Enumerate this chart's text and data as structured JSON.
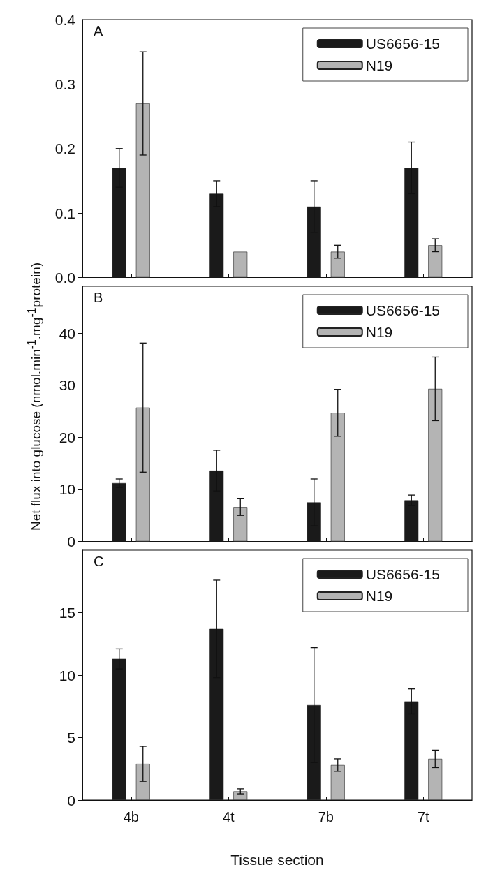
{
  "chart_data": [
    {
      "type": "bar",
      "annotations": [
        "A"
      ],
      "categories": [
        null,
        null,
        null,
        null
      ],
      "series": [
        {
          "name": "US6656-15",
          "color": "#1a1a1a",
          "values": [
            0.17,
            0.13,
            0.11,
            0.17
          ],
          "errors": [
            0.03,
            0.02,
            0.04,
            0.04
          ]
        },
        {
          "name": "N19",
          "color": "#b4b4b4",
          "values": [
            0.27,
            0.04,
            0.04,
            0.05
          ],
          "errors": [
            0.08,
            null,
            0.01,
            0.01
          ]
        }
      ],
      "ylim": [
        0,
        0.4
      ],
      "yticks": [
        {
          "value": 0,
          "label": "0.0"
        },
        0.1,
        0.2,
        0.3,
        0.4
      ],
      "legend": "top right",
      "grid": false
    },
    {
      "type": "bar",
      "annotations": [
        "B"
      ],
      "categories": [
        null,
        null,
        null,
        null
      ],
      "ylabel": "Net flux into glucose (nmol.min$^{-1}$.mg$^{-1}$protein)",
      "series": [
        {
          "name": "US6656-15",
          "color": "#1a1a1a",
          "values": [
            11.2,
            13.6,
            7.5,
            7.9
          ],
          "errors": [
            0.8,
            3.9,
            4.5,
            1.0
          ]
        },
        {
          "name": "N19",
          "color": "#b4b4b4",
          "values": [
            25.7,
            6.6,
            24.7,
            29.3
          ],
          "errors": [
            12.4,
            1.6,
            4.5,
            6.1
          ]
        }
      ],
      "ylim": [
        0,
        49
      ],
      "yticks": [
        0,
        10,
        20,
        30,
        40
      ],
      "legend": "top right",
      "grid": false
    },
    {
      "type": "bar",
      "annotations": [
        "C"
      ],
      "categories": [
        "4b",
        "4t",
        "7b",
        "7t"
      ],
      "xlabel": "Tissue section",
      "series": [
        {
          "name": "US6656-15",
          "color": "#1a1a1a",
          "values": [
            11.3,
            13.7,
            7.6,
            7.9
          ],
          "errors": [
            0.8,
            3.9,
            4.6,
            1.0
          ]
        },
        {
          "name": "N19",
          "color": "#b4b4b4",
          "values": [
            2.9,
            0.7,
            2.8,
            3.3
          ],
          "errors": [
            1.4,
            0.2,
            0.5,
            0.7
          ]
        }
      ],
      "ylim": [
        0,
        20
      ],
      "yticks": [
        0,
        5,
        10,
        15
      ],
      "legend": "top right",
      "grid": false
    }
  ]
}
